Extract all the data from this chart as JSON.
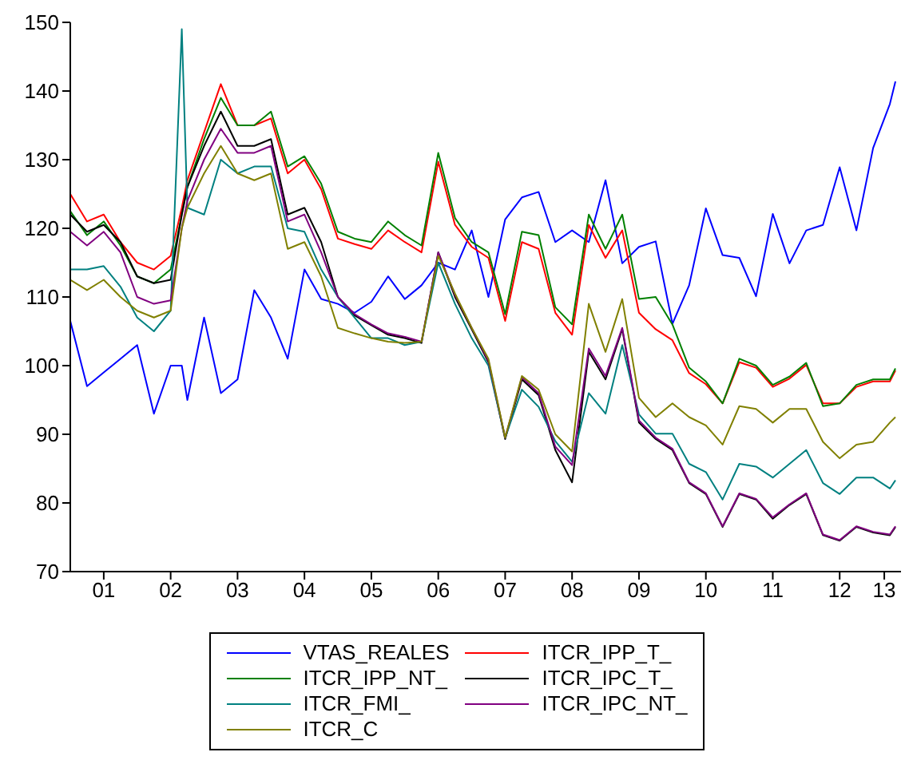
{
  "chart_data": {
    "type": "line",
    "marker": "none",
    "legend": "bottom",
    "grid": false,
    "x": [
      "2001-01",
      "2001-04",
      "2001-07",
      "2001-10",
      "2002-01",
      "2002-04",
      "2002-07",
      "2002-09",
      "2002-10",
      "2003-01",
      "2003-04",
      "2003-07",
      "2003-10",
      "2004-01",
      "2004-04",
      "2004-07",
      "2004-10",
      "2005-01",
      "2005-04",
      "2005-07",
      "2005-10",
      "2006-01",
      "2006-04",
      "2006-07",
      "2006-10",
      "2007-01",
      "2007-04",
      "2007-07",
      "2007-10",
      "2008-01",
      "2008-04",
      "2008-07",
      "2008-10",
      "2009-01",
      "2009-04",
      "2009-07",
      "2009-10",
      "2010-01",
      "2010-04",
      "2010-07",
      "2010-10",
      "2011-01",
      "2011-04",
      "2011-07",
      "2011-10",
      "2012-01",
      "2012-04",
      "2012-07",
      "2012-10",
      "2013-01",
      "2013-04",
      "2013-05"
    ],
    "xlim": [
      "2001-01",
      "2013-06"
    ],
    "xticks": [
      {
        "value": "2001-07",
        "label": "01"
      },
      {
        "value": "2002-07",
        "label": "02"
      },
      {
        "value": "2003-07",
        "label": "03"
      },
      {
        "value": "2004-07",
        "label": "04"
      },
      {
        "value": "2005-07",
        "label": "05"
      },
      {
        "value": "2006-07",
        "label": "06"
      },
      {
        "value": "2007-07",
        "label": "07"
      },
      {
        "value": "2008-07",
        "label": "08"
      },
      {
        "value": "2009-07",
        "label": "09"
      },
      {
        "value": "2010-07",
        "label": "10"
      },
      {
        "value": "2011-07",
        "label": "11"
      },
      {
        "value": "2012-07",
        "label": "12"
      },
      {
        "value": "2013-03",
        "label": "13"
      }
    ],
    "ylim": [
      70,
      150
    ],
    "yticks": [
      70,
      80,
      90,
      100,
      110,
      120,
      130,
      140,
      150
    ],
    "series": [
      {
        "name": "VTAS_REALES",
        "color": "#0000ff",
        "values": [
          106.5,
          97,
          99,
          101,
          103,
          93,
          100,
          100,
          95,
          107,
          96,
          98,
          111,
          107,
          101,
          114,
          109.7,
          109,
          107.7,
          109.3,
          113,
          109.7,
          111.7,
          115,
          114,
          119.7,
          110,
          121.3,
          124.5,
          125.3,
          118,
          119.7,
          118,
          127,
          114.9,
          117.3,
          118.1,
          106.1,
          111.7,
          122.9,
          116.1,
          115.7,
          110.1,
          122.1,
          114.9,
          119.7,
          120.5,
          128.9,
          119.7,
          131.7,
          138.1,
          141.4
        ]
      },
      {
        "name": "ITCR_IPP_T_",
        "color": "#ff0000",
        "values": [
          125,
          121,
          122,
          118,
          115,
          114,
          116,
          123,
          127,
          134,
          141,
          135,
          135,
          136,
          128,
          130,
          125.7,
          118.5,
          117.7,
          117,
          119.7,
          118,
          116.5,
          129.7,
          120.5,
          117.3,
          115.7,
          106.5,
          118,
          117,
          107.7,
          104.5,
          120.5,
          115.7,
          119.7,
          107.7,
          105.3,
          103.7,
          98.9,
          97.3,
          94.5,
          100.5,
          99.7,
          96.9,
          98.1,
          100.1,
          94.5,
          94.5,
          96.9,
          97.7,
          97.7,
          99.3
        ]
      },
      {
        "name": "ITCR_IPP_NT_",
        "color": "#008000",
        "values": [
          122.5,
          119,
          121,
          117.5,
          113,
          112,
          114,
          122,
          126,
          133,
          139,
          135,
          135,
          137,
          129,
          130.5,
          126.5,
          119.5,
          118.5,
          118,
          121,
          119,
          117.5,
          131,
          121.5,
          118,
          116.5,
          107.5,
          119.5,
          119,
          108.5,
          106,
          122,
          117,
          122,
          109.7,
          110,
          106,
          99.7,
          97.7,
          94.5,
          101,
          100,
          97.2,
          98.4,
          100.4,
          94.1,
          94.5,
          97.2,
          98,
          98,
          99.6
        ]
      },
      {
        "name": "ITCR_IPC_T_",
        "color": "#000000",
        "values": [
          122,
          119.5,
          120.5,
          118,
          113,
          112,
          112.5,
          122,
          126,
          132,
          137,
          132,
          132,
          133,
          122,
          123,
          118,
          110,
          107.3,
          105.9,
          104.5,
          104,
          103.3,
          116.5,
          110,
          105.3,
          100.5,
          89.3,
          98,
          95.7,
          87.7,
          83,
          102,
          98,
          105.3,
          91.7,
          89.3,
          87.7,
          82.9,
          81.3,
          76.5,
          81.3,
          80.5,
          77.7,
          79.7,
          81.3,
          75.3,
          74.5,
          76.5,
          75.7,
          75.3,
          76.5
        ]
      },
      {
        "name": "ITCR_FMI_",
        "color": "#008080",
        "values": [
          114,
          114,
          114.5,
          111.5,
          107,
          105,
          108,
          149,
          123,
          122,
          130,
          128,
          129,
          129,
          120,
          119.5,
          114,
          110,
          107,
          104,
          104,
          103,
          103.5,
          115,
          109,
          104,
          100,
          89.5,
          96.5,
          94,
          89,
          86,
          96,
          93,
          103,
          92.9,
          90.1,
          90.1,
          85.7,
          84.5,
          80.5,
          85.7,
          85.3,
          83.7,
          85.7,
          87.7,
          82.9,
          81.3,
          83.7,
          83.7,
          82.1,
          83.3
        ]
      },
      {
        "name": "ITCR_IPC_NT_",
        "color": "#800080",
        "values": [
          119.5,
          117.5,
          119.5,
          116.5,
          110,
          109,
          109.5,
          120,
          124,
          130,
          134.5,
          131,
          131,
          132,
          121,
          122,
          116.5,
          110,
          107.5,
          106,
          104.7,
          104.2,
          103.5,
          116.5,
          110.3,
          105.5,
          100.7,
          89.5,
          98.3,
          96,
          88.2,
          85.5,
          102.5,
          98.5,
          105.5,
          92,
          89.5,
          87.9,
          83,
          81.4,
          76.6,
          81.4,
          80.6,
          77.9,
          79.8,
          81.4,
          75.4,
          74.6,
          76.6,
          75.8,
          75.4,
          76.6
        ]
      },
      {
        "name": "ITCR_C",
        "color": "#808000",
        "values": [
          112.5,
          111,
          112.5,
          110,
          108,
          107,
          108,
          120,
          123,
          128,
          132,
          128,
          127,
          128,
          117,
          118,
          113,
          105.5,
          104.7,
          104,
          103.5,
          103.3,
          103.5,
          116,
          110.5,
          105.5,
          101,
          89.5,
          98.5,
          96.5,
          90,
          87.5,
          109,
          102,
          109.7,
          95.3,
          92.5,
          94.5,
          92.5,
          91.3,
          88.5,
          94.1,
          93.7,
          91.7,
          93.7,
          93.7,
          88.9,
          86.5,
          88.5,
          88.9,
          91.7,
          92.5
        ]
      }
    ]
  }
}
